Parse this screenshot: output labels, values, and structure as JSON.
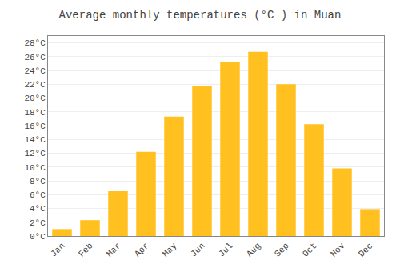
{
  "chart_data": {
    "type": "bar",
    "title": "Average monthly temperatures (°C ) in Muan",
    "categories": [
      "Jan",
      "Feb",
      "Mar",
      "Apr",
      "May",
      "Jun",
      "Jul",
      "Aug",
      "Sep",
      "Oct",
      "Nov",
      "Dec"
    ],
    "values": [
      1.0,
      2.3,
      6.5,
      12.2,
      17.3,
      21.7,
      25.3,
      26.7,
      22.0,
      16.2,
      9.8,
      3.9
    ],
    "color": "#FFC020",
    "ylim": [
      0,
      29
    ],
    "yticks": [
      {
        "value": 0,
        "label": "0°C"
      },
      {
        "value": 2,
        "label": "2°C"
      },
      {
        "value": 4,
        "label": "4°C"
      },
      {
        "value": 6,
        "label": "6°C"
      },
      {
        "value": 8,
        "label": "8°C"
      },
      {
        "value": 10,
        "label": "10°C"
      },
      {
        "value": 12,
        "label": "12°C"
      },
      {
        "value": 14,
        "label": "14°C"
      },
      {
        "value": 16,
        "label": "16°C"
      },
      {
        "value": 18,
        "label": "18°C"
      },
      {
        "value": 20,
        "label": "20°C"
      },
      {
        "value": 22,
        "label": "22°C"
      },
      {
        "value": 24,
        "label": "24°C"
      },
      {
        "value": 26,
        "label": "26°C"
      },
      {
        "value": 28,
        "label": "28°C"
      }
    ],
    "grid": true
  }
}
